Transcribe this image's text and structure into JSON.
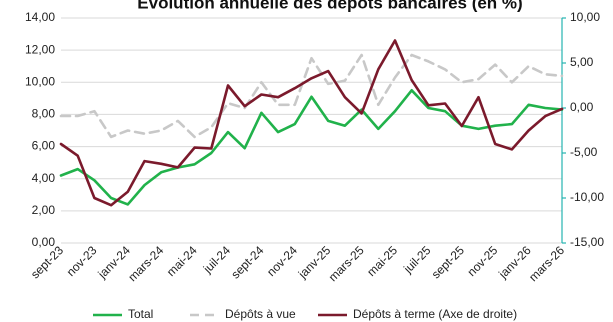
{
  "chart_data": {
    "type": "line",
    "title": "Evolution annuelle des dépôts bancaires (en %)",
    "categories": [
      "sept-23",
      "oct-23",
      "nov-23",
      "déc-23",
      "janv-24",
      "févr-24",
      "mars-24",
      "avr-24",
      "mai-24",
      "juin-24",
      "juil-24",
      "août-24",
      "sept-24",
      "oct-24",
      "nov-24",
      "déc-24",
      "janv-25",
      "févr-25",
      "mars-25",
      "avr-25",
      "mai-25",
      "juin-25",
      "juil-25",
      "août-25",
      "sept-25",
      "oct-25",
      "nov-25",
      "déc-25",
      "janv-26",
      "févr-26",
      "mars-26"
    ],
    "x_tick_labels": [
      "sept-23",
      "nov-23",
      "janv-24",
      "mars-24",
      "mai-24",
      "juil-24",
      "sept-24",
      "nov-24",
      "janv-25",
      "mars-25",
      "mai-25",
      "juil-25",
      "sept-25",
      "nov-25",
      "janv-26",
      "mars-26"
    ],
    "left_axis": {
      "ylim": [
        0,
        14
      ],
      "ticks": [
        "0,00",
        "2,00",
        "4,00",
        "6,00",
        "8,00",
        "10,00",
        "12,00",
        "14,00"
      ]
    },
    "right_axis": {
      "ylim": [
        -15,
        10
      ],
      "ticks": [
        "-15,00",
        "-10,00",
        "-5,00",
        "0,00",
        "5,00",
        "10,00"
      ],
      "color": "#26b3b0"
    },
    "series": [
      {
        "name": "Total",
        "axis": "left",
        "color": "#21b24b",
        "style": "solid",
        "values": [
          4.2,
          4.6,
          3.9,
          2.8,
          2.4,
          3.6,
          4.4,
          4.7,
          4.9,
          5.6,
          6.9,
          5.9,
          8.1,
          6.9,
          7.4,
          9.1,
          7.6,
          7.3,
          8.3,
          7.1,
          8.2,
          9.5,
          8.4,
          8.2,
          7.3,
          7.1,
          7.3,
          7.4,
          8.6,
          8.4,
          8.3
        ]
      },
      {
        "name": "Dépôts à vue",
        "axis": "left",
        "color": "#c8c8c8",
        "style": "dashed",
        "values": [
          7.9,
          7.9,
          8.2,
          6.6,
          7.0,
          6.8,
          7.0,
          7.6,
          6.6,
          7.2,
          8.7,
          8.4,
          10.0,
          8.6,
          8.6,
          11.5,
          9.9,
          10.1,
          11.7,
          8.6,
          10.3,
          11.7,
          11.3,
          10.8,
          10.0,
          10.2,
          11.1,
          10.0,
          11.0,
          10.5,
          10.4
        ]
      },
      {
        "name": "Dépôts à terme (Axe de droite)",
        "axis": "right",
        "color": "#7b1a2c",
        "style": "solid",
        "values": [
          -4.0,
          -5.3,
          -10.0,
          -10.8,
          -9.3,
          -5.9,
          -6.2,
          -6.6,
          -4.4,
          -4.5,
          2.5,
          0.2,
          1.5,
          1.2,
          2.2,
          3.3,
          4.1,
          1.2,
          -0.6,
          4.3,
          7.5,
          3.1,
          0.3,
          0.5,
          -2.0,
          1.2,
          -4.0,
          -4.6,
          -2.5,
          -0.9,
          -0.1
        ]
      }
    ],
    "grid": "horizontal",
    "legend_position": "bottom"
  }
}
